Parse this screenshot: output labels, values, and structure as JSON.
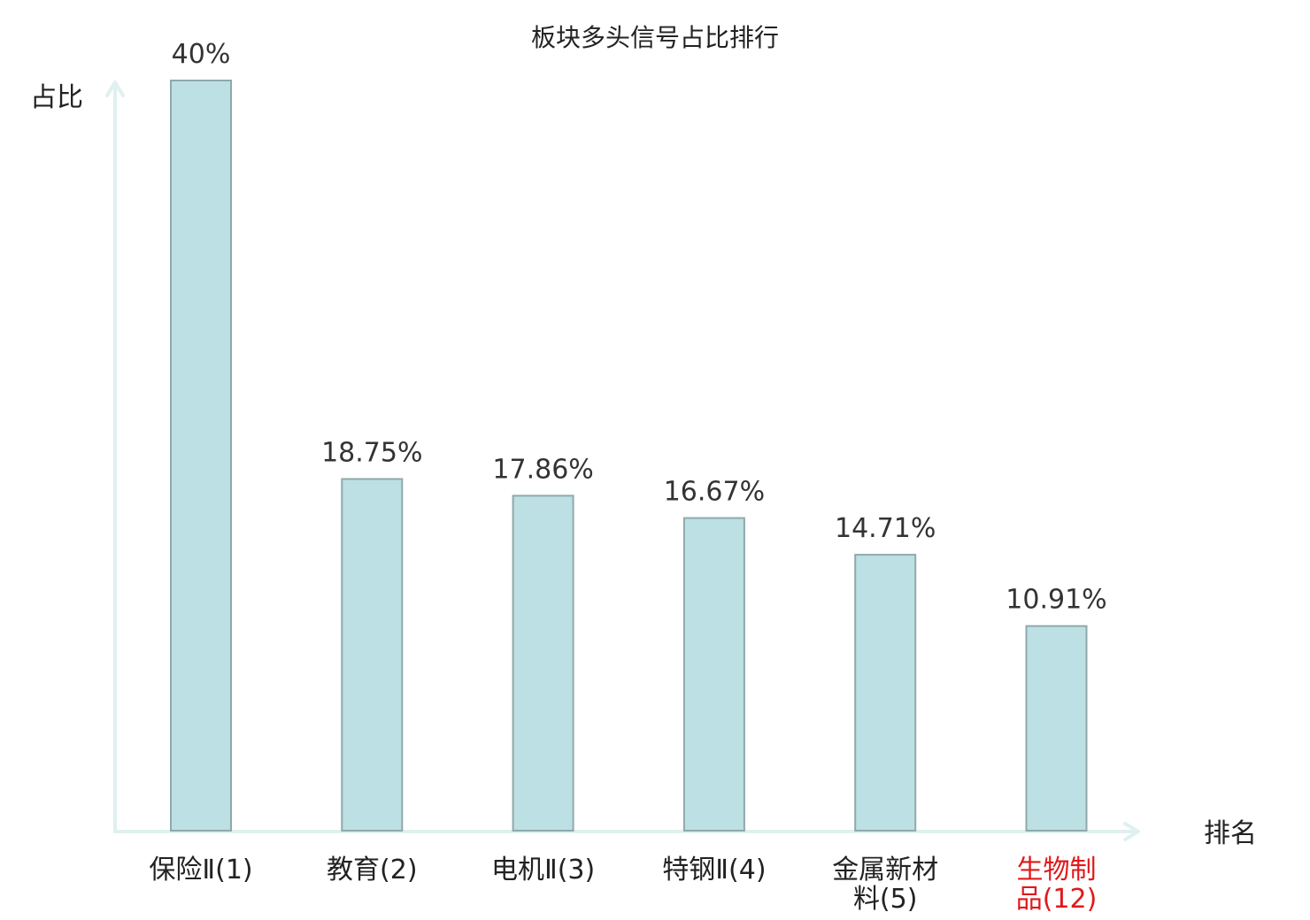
{
  "chart_data": {
    "type": "bar",
    "title": "板块多头信号占比排行",
    "ylabel": "占比",
    "xlabel": "排名",
    "categories": [
      "保险Ⅱ(1)",
      "教育(2)",
      "电机Ⅱ(3)",
      "特钢Ⅱ(4)",
      "金属新材料(5)",
      "生物制品(12)"
    ],
    "values": [
      40,
      18.75,
      17.86,
      16.67,
      14.71,
      10.91
    ],
    "value_labels": [
      "40%",
      "18.75%",
      "17.86%",
      "16.67%",
      "14.71%",
      "10.91%"
    ],
    "ylim": [
      0,
      40
    ],
    "grid": false,
    "highlight_category": "生物制品(12)",
    "colors": {
      "bar": "#bce0e3",
      "bar_stroke": "#8fa9ab",
      "axis": "#dff1ef",
      "highlight_text": "#e0191b"
    }
  }
}
